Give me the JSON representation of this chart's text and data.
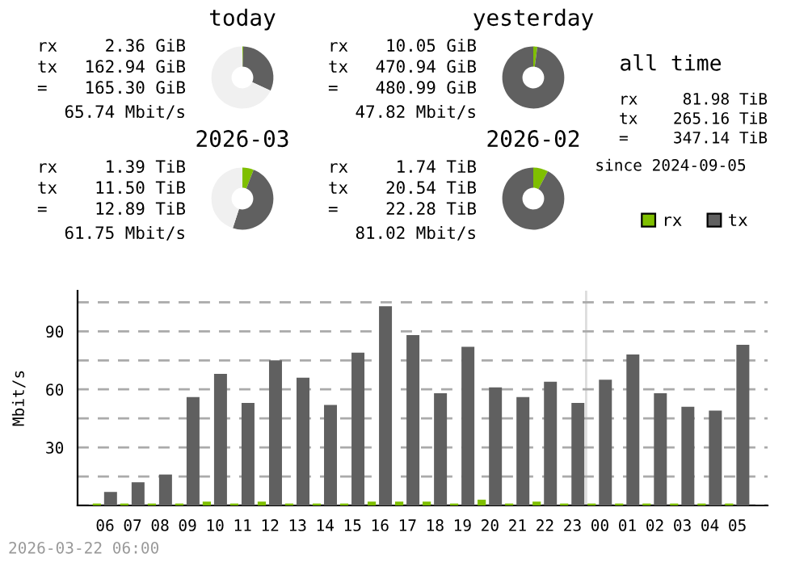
{
  "chart_data": [
    {
      "type": "donut",
      "title": "today",
      "categories": [
        null,
        null,
        null
      ],
      "values": [
        0.45,
        31.5,
        68.05
      ],
      "colors": [
        "#7fbf00",
        "#606060",
        "#f0f0f0"
      ],
      "annotations": [
        "rx 2.36 GiB",
        "tx 162.94 GiB",
        "= 165.30 GiB",
        "65.74 Mbit/s"
      ]
    },
    {
      "type": "donut",
      "title": "yesterday",
      "categories": [
        null,
        null
      ],
      "values": [
        2.09,
        97.91
      ],
      "colors": [
        "#7fbf00",
        "#606060"
      ],
      "annotations": [
        "rx 10.05 GiB",
        "tx 470.94 GiB",
        "= 480.99 GiB",
        "47.82 Mbit/s"
      ]
    },
    {
      "type": "other",
      "title": "all time",
      "annotations": [
        "rx 81.98 TiB",
        "tx 265.16 TiB",
        "= 347.14 TiB",
        "since 2024-09-05"
      ]
    },
    {
      "type": "donut",
      "title": "2026-03",
      "categories": [
        null,
        null,
        null
      ],
      "values": [
        5.9,
        49.1,
        45.0
      ],
      "colors": [
        "#7fbf00",
        "#606060",
        "#f0f0f0"
      ],
      "annotations": [
        "rx 1.39 TiB",
        "tx 11.50 TiB",
        "= 12.89 TiB",
        "61.75 Mbit/s"
      ]
    },
    {
      "type": "donut",
      "title": "2026-02",
      "categories": [
        null,
        null
      ],
      "values": [
        7.8,
        92.2
      ],
      "colors": [
        "#7fbf00",
        "#606060"
      ],
      "annotations": [
        "rx 1.74 TiB",
        "tx 20.54 TiB",
        "= 22.28 TiB",
        "81.02 Mbit/s"
      ]
    },
    {
      "type": "bar",
      "ylabel": "Mbit/s",
      "legend": "top right",
      "grid": "y",
      "categories": [
        "06",
        "07",
        "08",
        "09",
        "10",
        "11",
        "12",
        "13",
        "14",
        "15",
        "16",
        "17",
        "18",
        "19",
        "20",
        "21",
        "22",
        "23",
        "00",
        "01",
        "02",
        "03",
        "04",
        "05"
      ],
      "series": [
        {
          "name": "rx",
          "color": "#7fbf00",
          "values": [
            1,
            1,
            1,
            1,
            2,
            1,
            2,
            1,
            1,
            1,
            2,
            2,
            2,
            1,
            3,
            1,
            2,
            1,
            1,
            1,
            1,
            1,
            1,
            1
          ]
        },
        {
          "name": "tx",
          "color": "#606060",
          "values": [
            7,
            12,
            16,
            56,
            68,
            53,
            75,
            66,
            52,
            79,
            103,
            88,
            58,
            82,
            61,
            56,
            64,
            53,
            65,
            78,
            58,
            51,
            49,
            83
          ]
        }
      ],
      "ylim": [
        0,
        111
      ],
      "yticks": [
        {
          "value": 0,
          "label": null
        },
        {
          "value": 15,
          "label": null
        },
        30,
        {
          "value": 45,
          "label": null
        },
        60,
        {
          "value": 75,
          "label": null
        },
        90,
        {
          "value": 105,
          "label": null
        }
      ],
      "ref_lines": [
        {
          "axis": "x",
          "value": "00",
          "color": "#dddddd"
        }
      ],
      "annotations": [
        "2026-03-22 06:00"
      ]
    }
  ]
}
